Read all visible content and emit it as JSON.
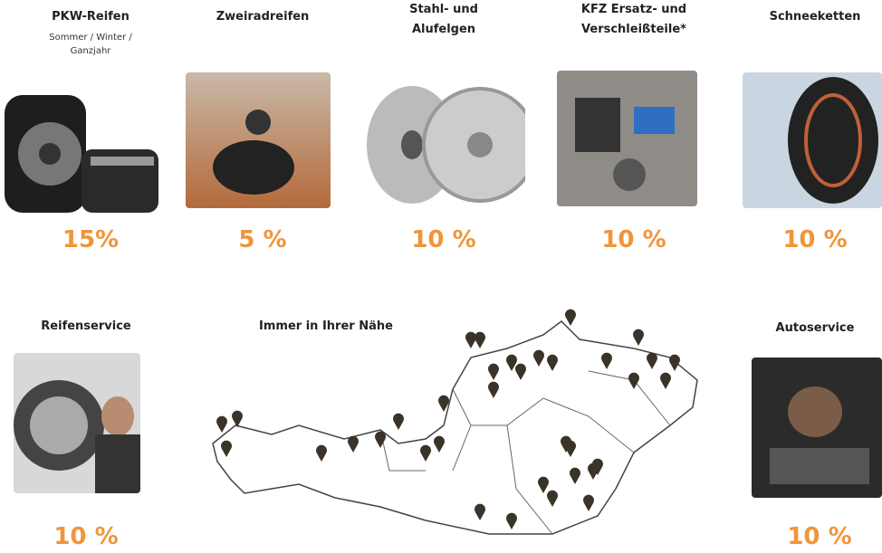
{
  "products": [
    {
      "title": "PKW-Reifen",
      "subtitle": "Sommer / Winter / Ganzjahr",
      "discount": "15%"
    },
    {
      "title": "Zweiradreifen",
      "discount": "5 %"
    },
    {
      "title": "Stahl- und Alufelgen",
      "discount": "10 %"
    },
    {
      "title": "KFZ Ersatz- und Verschleißteile*",
      "discount": "10 %"
    },
    {
      "title": "Schneeketten",
      "discount": "10 %"
    }
  ],
  "services": [
    {
      "title": "Reifenservice",
      "discount": "10 %"
    },
    {
      "title": "Autoservice",
      "discount": "10 %"
    }
  ],
  "map": {
    "title": "Immer in Ihrer Nähe"
  }
}
